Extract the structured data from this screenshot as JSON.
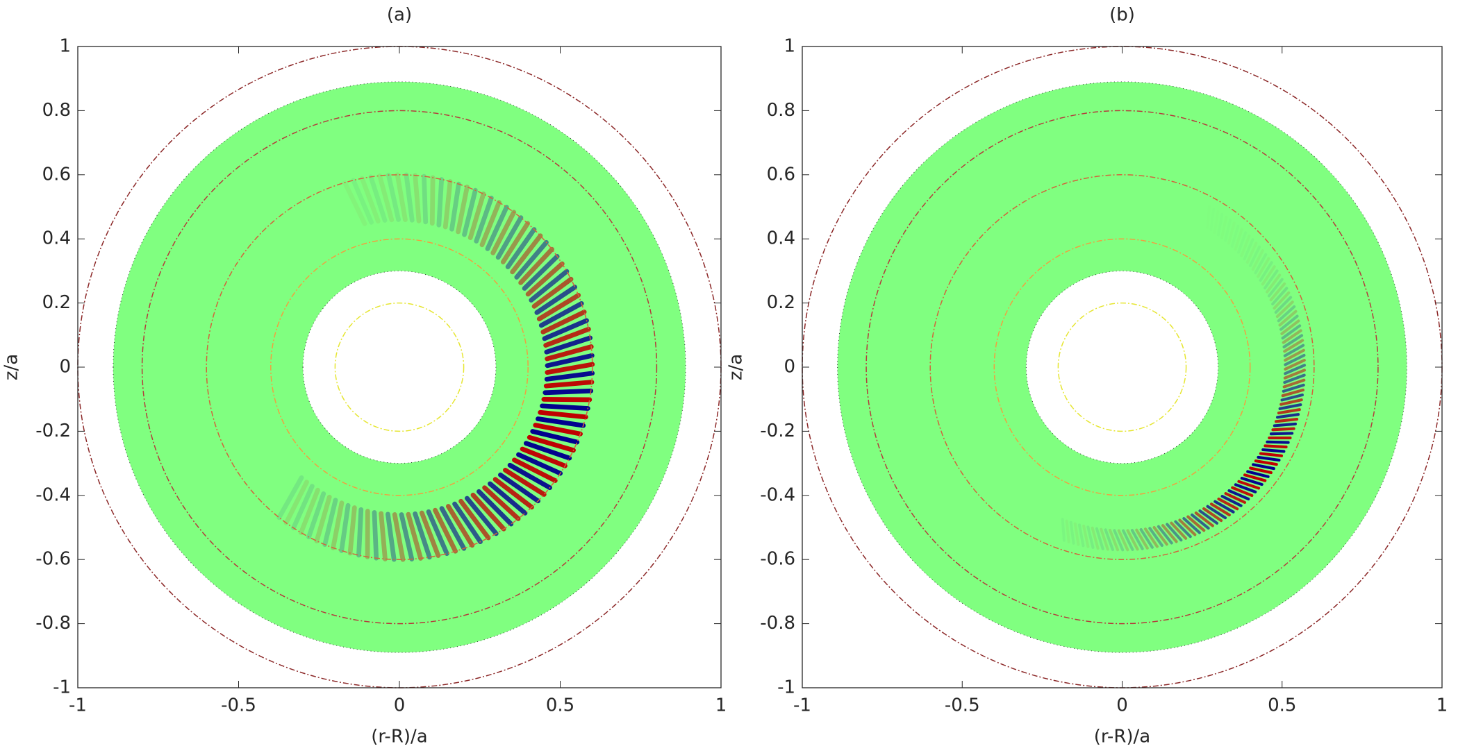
{
  "chart_data": [
    {
      "type": "annulus-mode",
      "title": "(a)",
      "xlabel": "(r-R)/a",
      "ylabel": "z/a",
      "xlim": [
        -1,
        1
      ],
      "ylim": [
        -1,
        1
      ],
      "xticks": [
        -1,
        -0.5,
        0,
        0.5,
        1
      ],
      "yticks": [
        -1,
        -0.8,
        -0.6,
        -0.4,
        -0.2,
        0,
        0.2,
        0.4,
        0.6,
        0.8,
        1
      ],
      "domain": {
        "r_inner": 0.3,
        "r_outer": 0.89,
        "color": "#80ff80"
      },
      "surfaces": [
        {
          "r": 0.2,
          "color": "#e6e632"
        },
        {
          "r": 0.4,
          "color": "#f0a040"
        },
        {
          "r": 0.6,
          "color": "#d2643c"
        },
        {
          "r": 0.8,
          "color": "#b43c3c"
        },
        {
          "r": 1,
          "color": "#8c2828"
        }
      ],
      "mode": {
        "r": 0.53,
        "dr": 0.07,
        "theta_min": -130,
        "theta_max": 105,
        "peak": -20,
        "spread": 70,
        "count": 90,
        "colors": [
          "#c00000",
          "#00008f"
        ]
      }
    },
    {
      "type": "annulus-mode",
      "title": "(b)",
      "xlabel": "(r-R)/a",
      "ylabel": "z/a",
      "xlim": [
        -1,
        1
      ],
      "ylim": [
        -1,
        1
      ],
      "xticks": [
        -1,
        -0.5,
        0,
        0.5,
        1
      ],
      "yticks": [
        -1,
        -0.8,
        -0.6,
        -0.4,
        -0.2,
        0,
        0.2,
        0.4,
        0.6,
        0.8,
        1
      ],
      "domain": {
        "r_inner": 0.3,
        "r_outer": 0.89,
        "color": "#80ff80"
      },
      "surfaces": [
        {
          "r": 0.2,
          "color": "#e6e632"
        },
        {
          "r": 0.4,
          "color": "#f0a040"
        },
        {
          "r": 0.6,
          "color": "#d2643c"
        },
        {
          "r": 0.8,
          "color": "#b43c3c"
        },
        {
          "r": 1,
          "color": "#8c2828"
        }
      ],
      "mode": {
        "r": 0.54,
        "dr": 0.03,
        "theta_min": -110,
        "theta_max": 60,
        "peak": -35,
        "spread": 40,
        "count": 110,
        "colors": [
          "#c00000",
          "#00008f"
        ]
      }
    }
  ]
}
